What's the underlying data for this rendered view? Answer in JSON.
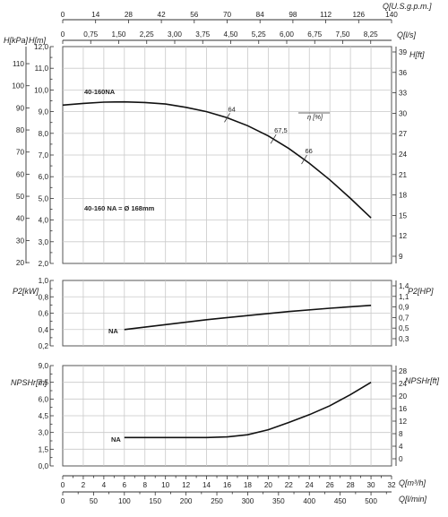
{
  "chart_data": {
    "type": "line",
    "pump_label": "40-160NA",
    "impeller_note": "40-160 NA = Ø 168mm",
    "flow_axes": {
      "usgpm": {
        "label": "Q[U.S.g.p.m.]",
        "ticks": [
          "0",
          "14",
          "28",
          "42",
          "56",
          "70",
          "84",
          "98",
          "112",
          "126",
          "140"
        ]
      },
      "ls": {
        "label": "Q[l/s]",
        "ticks": [
          "0",
          "0,75",
          "1,50",
          "2,25",
          "3,00",
          "3,75",
          "4,50",
          "5,25",
          "6,00",
          "6,75",
          "7,50",
          "8,25"
        ]
      },
      "m3h": {
        "label": "Q[m³/h]",
        "ticks": [
          "0",
          "2",
          "4",
          "6",
          "8",
          "10",
          "12",
          "14",
          "16",
          "18",
          "20",
          "22",
          "24",
          "26",
          "28",
          "30",
          "32"
        ],
        "range": [
          0,
          32
        ]
      },
      "lmin": {
        "label": "Q[l/min]",
        "ticks": [
          "0",
          "50",
          "100",
          "150",
          "200",
          "250",
          "300",
          "350",
          "400",
          "450",
          "500"
        ]
      }
    },
    "charts": [
      {
        "id": "head",
        "left_axes": [
          {
            "label": "H[kPa]",
            "ticks": [
              "20",
              "30",
              "40",
              "50",
              "60",
              "70",
              "80",
              "90",
              "100",
              "110"
            ]
          },
          {
            "label": "H[m]",
            "ticks": [
              "2,0",
              "3,0",
              "4,0",
              "5,0",
              "6,0",
              "7,0",
              "8,0",
              "9,0",
              "10,0",
              "11,0",
              "12,0"
            ],
            "range": [
              2,
              12
            ]
          }
        ],
        "right_axis": {
          "label": "H[ft]",
          "ticks": [
            "9",
            "12",
            "15",
            "18",
            "21",
            "24",
            "27",
            "30",
            "33",
            "36",
            "39"
          ]
        },
        "series": [
          {
            "name": "40-160NA",
            "x": [
              0,
              2,
              4,
              6,
              8,
              10,
              12,
              14,
              16,
              18,
              20,
              22,
              24,
              26,
              28,
              30
            ],
            "y": [
              9.3,
              9.38,
              9.44,
              9.45,
              9.42,
              9.35,
              9.2,
              9.0,
              8.72,
              8.35,
              7.88,
              7.3,
              6.62,
              5.85,
              5.0,
              4.1
            ]
          }
        ],
        "efficiency": {
          "label": "η [%]",
          "marks": [
            {
              "value": "64",
              "x": 16
            },
            {
              "value": "67,5",
              "x": 20.5
            },
            {
              "value": "66",
              "x": 23.5
            }
          ]
        }
      },
      {
        "id": "power",
        "left_axis": {
          "label": "P2[kW]",
          "ticks": [
            "0,2",
            "0,4",
            "0,6",
            "0,8",
            "1,0"
          ],
          "range": [
            0.2,
            1.0
          ]
        },
        "right_axis": {
          "label": "P2[HP]",
          "ticks": [
            "0,3",
            "0,5",
            "0,7",
            "0,9",
            "1,1",
            "1,4"
          ]
        },
        "series": [
          {
            "name": "NA",
            "x": [
              6,
              10,
              14,
              18,
              22,
              26,
              30
            ],
            "y": [
              0.4,
              0.46,
              0.52,
              0.57,
              0.62,
              0.66,
              0.695
            ]
          }
        ]
      },
      {
        "id": "npsh",
        "left_axis": {
          "label": "NPSHr[m]",
          "ticks": [
            "0,0",
            "1,5",
            "3,0",
            "4,5",
            "6,0",
            "7,5",
            "9,0"
          ],
          "range": [
            0,
            9
          ]
        },
        "right_axis": {
          "label": "NPSHr[ft]",
          "ticks": [
            "0",
            "4",
            "8",
            "12",
            "16",
            "20",
            "24",
            "28"
          ]
        },
        "series": [
          {
            "name": "NA",
            "x": [
              6,
              10,
              14,
              16,
              18,
              20,
              22,
              24,
              26,
              28,
              30
            ],
            "y": [
              2.55,
              2.55,
              2.55,
              2.6,
              2.8,
              3.25,
              3.9,
              4.6,
              5.4,
              6.4,
              7.5
            ]
          }
        ]
      }
    ]
  }
}
